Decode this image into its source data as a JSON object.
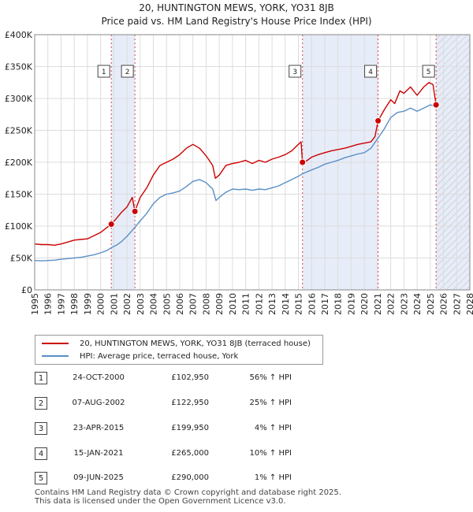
{
  "chart_data": {
    "type": "line",
    "title": "20, HUNTINGTON MEWS, YORK, YO31 8JB",
    "subtitle": "Price paid vs. HM Land Registry's House Price Index (HPI)",
    "xlim": [
      1995,
      2028
    ],
    "ylim": [
      0,
      400000
    ],
    "x_ticks": [
      "1995",
      "1996",
      "1997",
      "1998",
      "1999",
      "2000",
      "2001",
      "2002",
      "2003",
      "2004",
      "2005",
      "2006",
      "2007",
      "2008",
      "2009",
      "2010",
      "2011",
      "2012",
      "2013",
      "2014",
      "2015",
      "2016",
      "2017",
      "2018",
      "2019",
      "2020",
      "2021",
      "2022",
      "2023",
      "2024",
      "2025",
      "2026",
      "2027",
      "2028"
    ],
    "y_ticks": [
      {
        "value": 0,
        "label": "£0"
      },
      {
        "value": 50000,
        "label": "£50K"
      },
      {
        "value": 100000,
        "label": "£100K"
      },
      {
        "value": 150000,
        "label": "£150K"
      },
      {
        "value": 200000,
        "label": "£200K"
      },
      {
        "value": 250000,
        "label": "£250K"
      },
      {
        "value": 300000,
        "label": "£300K"
      },
      {
        "value": 350000,
        "label": "£350K"
      },
      {
        "value": 400000,
        "label": "£400K"
      }
    ],
    "shaded_periods": [
      [
        2000.81,
        2002.6
      ],
      [
        2015.31,
        2021.04
      ],
      [
        2025.44,
        2028
      ]
    ],
    "future_start": 2025.44,
    "series": [
      {
        "name": "20, HUNTINGTON MEWS, YORK, YO31 8JB (terraced house)",
        "color": "#cc0000",
        "points": [
          [
            1995,
            72000
          ],
          [
            1995.5,
            71000
          ],
          [
            1996,
            71000
          ],
          [
            1996.5,
            70000
          ],
          [
            1997,
            72000
          ],
          [
            1997.5,
            75000
          ],
          [
            1998,
            78000
          ],
          [
            1998.5,
            79000
          ],
          [
            1999,
            80000
          ],
          [
            1999.5,
            85000
          ],
          [
            2000,
            90000
          ],
          [
            2000.5,
            98000
          ],
          [
            2000.81,
            102950
          ],
          [
            2001.2,
            112000
          ],
          [
            2001.6,
            122000
          ],
          [
            2002,
            130000
          ],
          [
            2002.4,
            145000
          ],
          [
            2002.6,
            122950
          ],
          [
            2003,
            145000
          ],
          [
            2003.5,
            160000
          ],
          [
            2004,
            180000
          ],
          [
            2004.5,
            195000
          ],
          [
            2005,
            200000
          ],
          [
            2005.5,
            205000
          ],
          [
            2006,
            212000
          ],
          [
            2006.5,
            222000
          ],
          [
            2007,
            228000
          ],
          [
            2007.5,
            222000
          ],
          [
            2008,
            210000
          ],
          [
            2008.5,
            195000
          ],
          [
            2008.7,
            175000
          ],
          [
            2009,
            180000
          ],
          [
            2009.5,
            195000
          ],
          [
            2010,
            198000
          ],
          [
            2010.5,
            200000
          ],
          [
            2011,
            203000
          ],
          [
            2011.5,
            198000
          ],
          [
            2012,
            203000
          ],
          [
            2012.5,
            200000
          ],
          [
            2013,
            205000
          ],
          [
            2013.5,
            208000
          ],
          [
            2014,
            212000
          ],
          [
            2014.5,
            218000
          ],
          [
            2015,
            228000
          ],
          [
            2015.2,
            232000
          ],
          [
            2015.31,
            199950
          ],
          [
            2015.6,
            202000
          ],
          [
            2016,
            208000
          ],
          [
            2016.5,
            212000
          ],
          [
            2017,
            215000
          ],
          [
            2017.5,
            218000
          ],
          [
            2018,
            220000
          ],
          [
            2018.5,
            222000
          ],
          [
            2019,
            225000
          ],
          [
            2019.5,
            228000
          ],
          [
            2020,
            230000
          ],
          [
            2020.5,
            232000
          ],
          [
            2020.8,
            240000
          ],
          [
            2021.04,
            265000
          ],
          [
            2021.5,
            282000
          ],
          [
            2022,
            298000
          ],
          [
            2022.3,
            292000
          ],
          [
            2022.7,
            312000
          ],
          [
            2023,
            308000
          ],
          [
            2023.5,
            318000
          ],
          [
            2024,
            305000
          ],
          [
            2024.5,
            318000
          ],
          [
            2024.9,
            325000
          ],
          [
            2025.2,
            322000
          ],
          [
            2025.44,
            290000
          ]
        ]
      },
      {
        "name": "HPI: Average price, terraced house, York",
        "color": "#5b8fc7",
        "points": [
          [
            1995,
            46000
          ],
          [
            1995.5,
            45500
          ],
          [
            1996,
            46000
          ],
          [
            1996.5,
            46500
          ],
          [
            1997,
            48000
          ],
          [
            1997.5,
            49000
          ],
          [
            1998,
            50000
          ],
          [
            1998.5,
            51000
          ],
          [
            1999,
            53000
          ],
          [
            1999.5,
            55000
          ],
          [
            2000,
            58000
          ],
          [
            2000.5,
            62000
          ],
          [
            2000.81,
            66000
          ],
          [
            2001.2,
            70000
          ],
          [
            2001.6,
            76000
          ],
          [
            2002,
            84000
          ],
          [
            2002.6,
            98000
          ],
          [
            2003,
            108000
          ],
          [
            2003.5,
            120000
          ],
          [
            2004,
            135000
          ],
          [
            2004.5,
            145000
          ],
          [
            2005,
            150000
          ],
          [
            2005.5,
            152000
          ],
          [
            2006,
            155000
          ],
          [
            2006.5,
            162000
          ],
          [
            2007,
            170000
          ],
          [
            2007.5,
            173000
          ],
          [
            2008,
            168000
          ],
          [
            2008.5,
            158000
          ],
          [
            2008.75,
            140000
          ],
          [
            2009,
            145000
          ],
          [
            2009.5,
            153000
          ],
          [
            2010,
            158000
          ],
          [
            2010.5,
            157000
          ],
          [
            2011,
            158000
          ],
          [
            2011.5,
            156000
          ],
          [
            2012,
            158000
          ],
          [
            2012.5,
            157000
          ],
          [
            2013,
            160000
          ],
          [
            2013.5,
            163000
          ],
          [
            2014,
            168000
          ],
          [
            2014.5,
            173000
          ],
          [
            2015,
            178000
          ],
          [
            2015.31,
            182000
          ],
          [
            2016,
            188000
          ],
          [
            2016.5,
            192000
          ],
          [
            2017,
            197000
          ],
          [
            2017.5,
            200000
          ],
          [
            2018,
            203000
          ],
          [
            2018.5,
            207000
          ],
          [
            2019,
            210000
          ],
          [
            2019.5,
            213000
          ],
          [
            2020,
            215000
          ],
          [
            2020.5,
            222000
          ],
          [
            2021.04,
            238000
          ],
          [
            2021.5,
            252000
          ],
          [
            2022,
            270000
          ],
          [
            2022.5,
            278000
          ],
          [
            2023,
            280000
          ],
          [
            2023.5,
            285000
          ],
          [
            2024,
            280000
          ],
          [
            2024.5,
            285000
          ],
          [
            2025,
            290000
          ],
          [
            2025.44,
            287000
          ]
        ]
      }
    ],
    "markers": [
      {
        "label": "1",
        "x": 2000.81,
        "y": 102950
      },
      {
        "label": "2",
        "x": 2002.6,
        "y": 122950
      },
      {
        "label": "3",
        "x": 2015.31,
        "y": 199950
      },
      {
        "label": "4",
        "x": 2021.04,
        "y": 265000
      },
      {
        "label": "5",
        "x": 2025.44,
        "y": 290000
      }
    ]
  },
  "legend": {
    "property_label": "20, HUNTINGTON MEWS, YORK, YO31 8JB (terraced house)",
    "hpi_label": "HPI: Average price, terraced house, York"
  },
  "transactions": [
    {
      "num": "1",
      "date": "24-OCT-2000",
      "price": "£102,950",
      "hpi": "56% ↑ HPI"
    },
    {
      "num": "2",
      "date": "07-AUG-2002",
      "price": "£122,950",
      "hpi": "25% ↑ HPI"
    },
    {
      "num": "3",
      "date": "23-APR-2015",
      "price": "£199,950",
      "hpi": "4% ↑ HPI"
    },
    {
      "num": "4",
      "date": "15-JAN-2021",
      "price": "£265,000",
      "hpi": "10% ↑ HPI"
    },
    {
      "num": "5",
      "date": "09-JUN-2025",
      "price": "£290,000",
      "hpi": "1% ↑ HPI"
    }
  ],
  "footer": {
    "line1": "Contains HM Land Registry data © Crown copyright and database right 2025.",
    "line2": "This data is licensed under the Open Government Licence v3.0."
  }
}
